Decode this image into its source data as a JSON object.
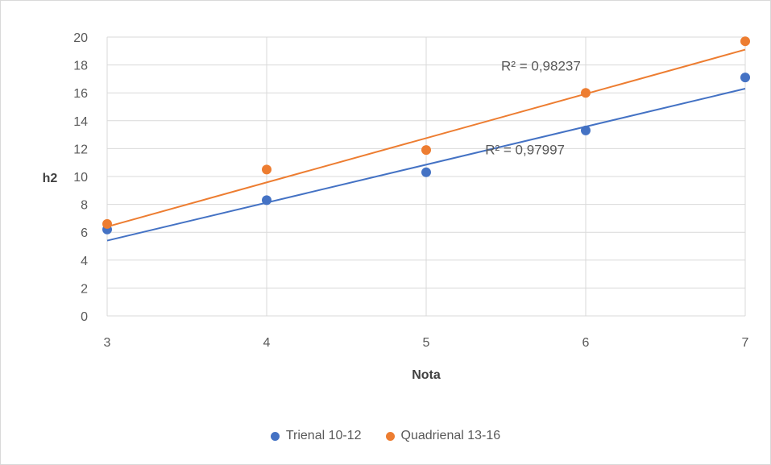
{
  "chart_data": {
    "type": "scatter",
    "title": "",
    "xlabel": "Nota",
    "ylabel": "h2",
    "xlim": [
      3,
      7
    ],
    "ylim": [
      0,
      20
    ],
    "xticks": [
      3,
      4,
      5,
      6,
      7
    ],
    "yticks": [
      0,
      2,
      4,
      6,
      8,
      10,
      12,
      14,
      16,
      18,
      20
    ],
    "grid": true,
    "legend_position": "bottom",
    "series": [
      {
        "name": "Trienal 10-12",
        "color": "#4472c4",
        "points": [
          [
            3,
            6.2
          ],
          [
            4,
            8.3
          ],
          [
            5,
            10.3
          ],
          [
            6,
            13.3
          ],
          [
            7,
            17.1
          ]
        ],
        "trendline": {
          "type": "linear",
          "from": [
            3,
            5.4
          ],
          "to": [
            7,
            16.3
          ]
        },
        "r2_label": "R² = 0,97997"
      },
      {
        "name": "Quadrienal 13-16",
        "color": "#ed7d31",
        "points": [
          [
            3,
            6.6
          ],
          [
            4,
            10.5
          ],
          [
            5,
            11.9
          ],
          [
            6,
            16.0
          ],
          [
            7,
            19.7
          ]
        ],
        "trendline": {
          "type": "linear",
          "from": [
            3,
            6.4
          ],
          "to": [
            7,
            19.1
          ]
        },
        "r2_label": "R² = 0,98237"
      }
    ]
  }
}
